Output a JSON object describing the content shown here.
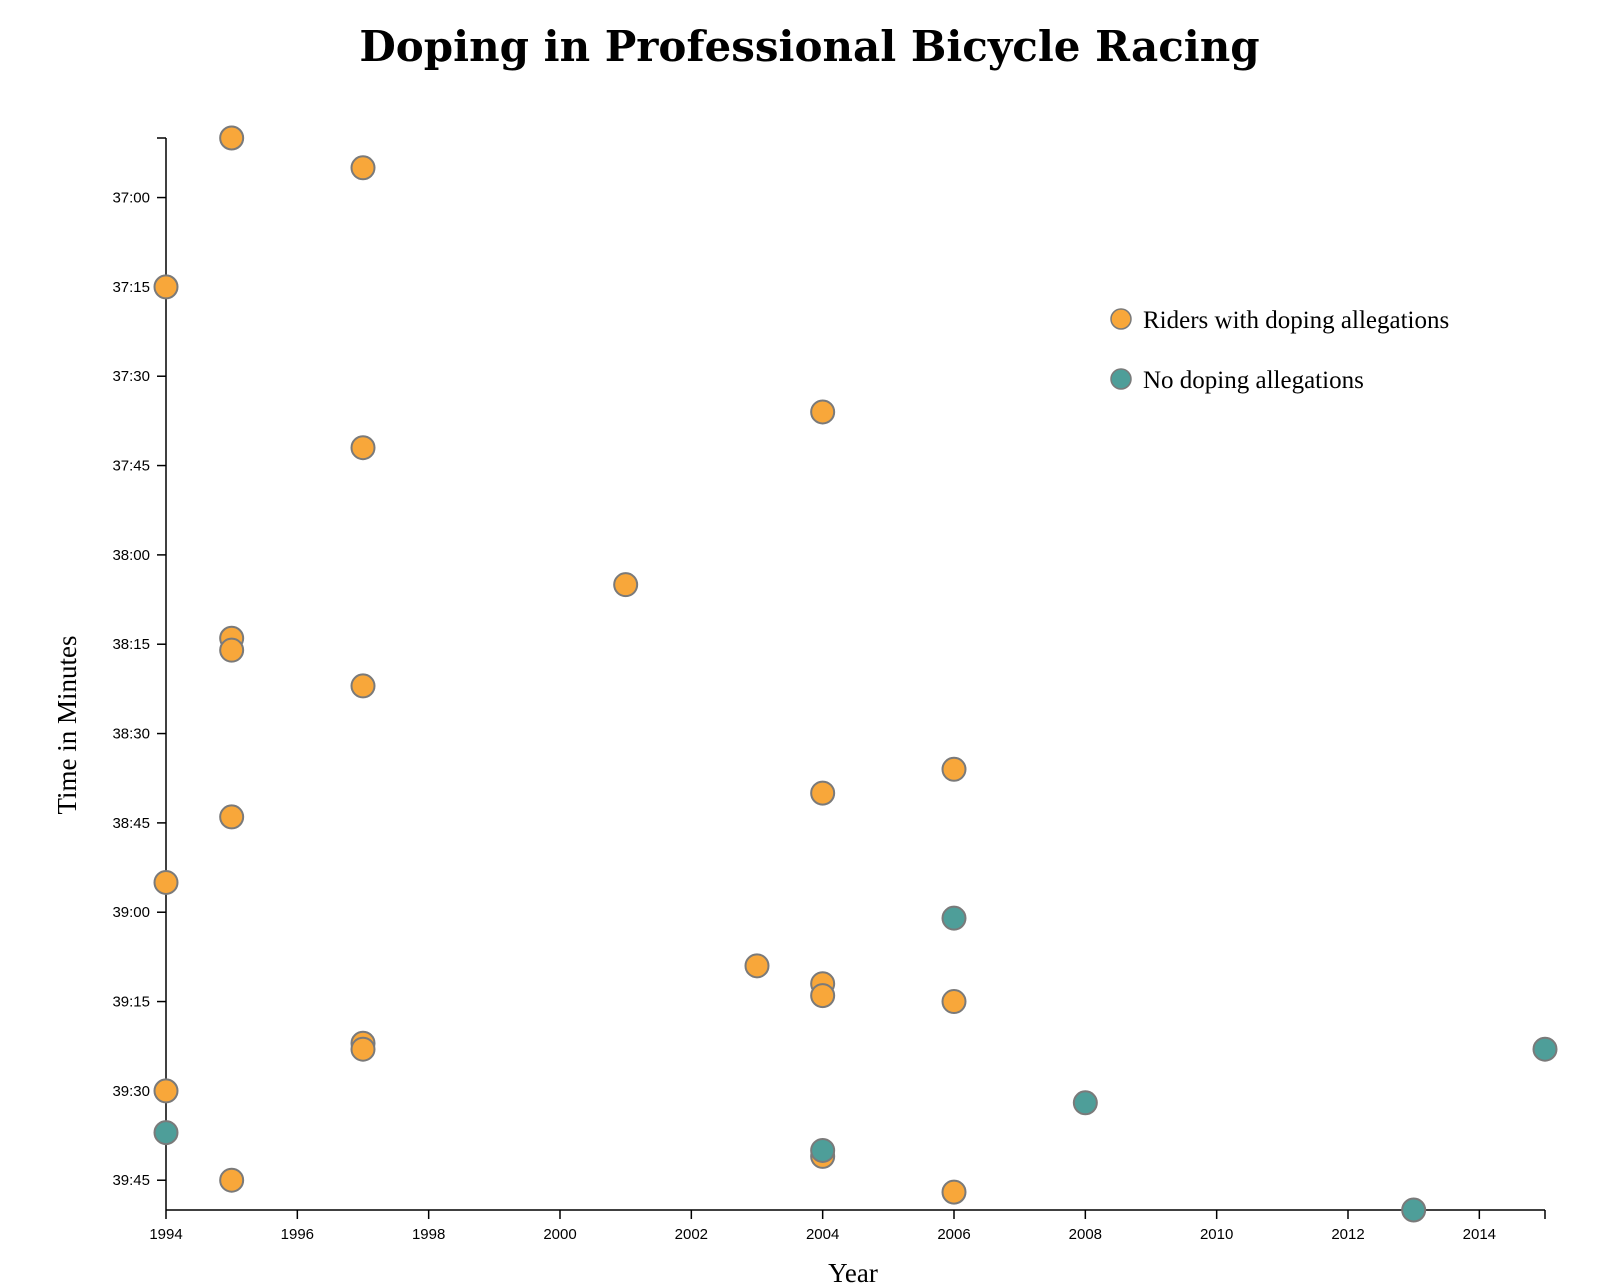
{
  "chart_data": {
    "type": "scatter",
    "title": "Doping in Professional Bicycle Racing",
    "xlabel": "Year",
    "ylabel": "Time in Minutes",
    "xlim": [
      1994,
      2015
    ],
    "ylim": [
      2210,
      2390
    ],
    "y_reversed": true,
    "x_ticks": [
      "1994",
      "1996",
      "1998",
      "2000",
      "2002",
      "2004",
      "2006",
      "2008",
      "2010",
      "2012",
      "2014"
    ],
    "y_ticks": [
      "37:00",
      "37:15",
      "37:30",
      "37:45",
      "38:00",
      "38:15",
      "38:30",
      "38:45",
      "39:00",
      "39:15",
      "39:30",
      "39:45"
    ],
    "grid": false,
    "legend_position": "top-right",
    "series": [
      {
        "name": "Riders with doping allegations",
        "color": "#f8a73a",
        "points": [
          {
            "x": 1995,
            "y": "36:50"
          },
          {
            "x": 1997,
            "y": "36:55"
          },
          {
            "x": 1994,
            "y": "37:15"
          },
          {
            "x": 2004,
            "y": "37:36"
          },
          {
            "x": 1997,
            "y": "37:42"
          },
          {
            "x": 2001,
            "y": "38:05"
          },
          {
            "x": 1995,
            "y": "38:14"
          },
          {
            "x": 1995,
            "y": "38:16"
          },
          {
            "x": 1997,
            "y": "38:22"
          },
          {
            "x": 2006,
            "y": "38:36"
          },
          {
            "x": 2004,
            "y": "38:40"
          },
          {
            "x": 1995,
            "y": "38:44"
          },
          {
            "x": 1994,
            "y": "38:55"
          },
          {
            "x": 2003,
            "y": "39:09"
          },
          {
            "x": 2004,
            "y": "39:12"
          },
          {
            "x": 2004,
            "y": "39:14"
          },
          {
            "x": 2006,
            "y": "39:15"
          },
          {
            "x": 1997,
            "y": "39:22"
          },
          {
            "x": 1997,
            "y": "39:23"
          },
          {
            "x": 1994,
            "y": "39:30"
          },
          {
            "x": 2004,
            "y": "39:41"
          },
          {
            "x": 1995,
            "y": "39:45"
          },
          {
            "x": 2006,
            "y": "39:47"
          }
        ]
      },
      {
        "name": "No doping allegations",
        "color": "#4e9e99",
        "points": [
          {
            "x": 2006,
            "y": "39:01"
          },
          {
            "x": 2015,
            "y": "39:23"
          },
          {
            "x": 2008,
            "y": "39:32"
          },
          {
            "x": 1994,
            "y": "39:37"
          },
          {
            "x": 2004,
            "y": "39:40"
          },
          {
            "x": 2013,
            "y": "39:50"
          }
        ]
      }
    ]
  }
}
